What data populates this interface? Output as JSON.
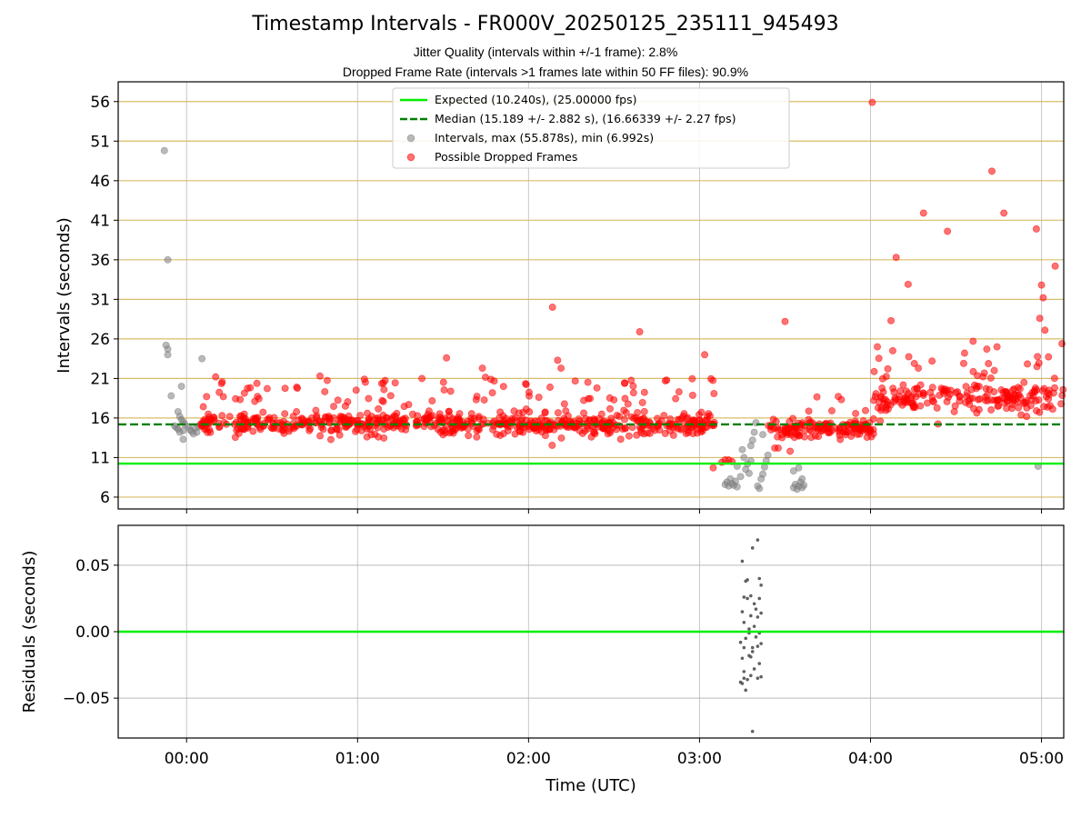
{
  "chart_data": [
    {
      "type": "scatter",
      "title": "Timestamp Intervals - FR000V_20250125_235111_945493",
      "subtitle_lines": [
        "Jitter Quality (intervals within +/-1 frame): 2.8%",
        "Dropped Frame Rate (intervals >1 frames late within 50 FF files): 90.9%"
      ],
      "ylabel": "Intervals (seconds)",
      "xlabel": "",
      "xlim": [
        -0.4,
        5.13
      ],
      "ylim": [
        4.5,
        58.5
      ],
      "x_unit": "hours from 00:00 UTC",
      "yticks": [
        6,
        11,
        16,
        21,
        26,
        31,
        36,
        41,
        46,
        51,
        56
      ],
      "xticks": [
        0,
        1,
        2,
        3,
        4,
        5
      ],
      "xtick_labels": [
        "00:00",
        "01:00",
        "02:00",
        "03:00",
        "04:00",
        "05:00"
      ],
      "grid": true,
      "legend_position": "top-center",
      "reference_lines": [
        {
          "name": "Expected (10.240s), (25.00000 fps)",
          "y": 10.24,
          "color": "#00ee00",
          "style": "solid"
        },
        {
          "name": "Median (15.189 +/- 2.882 s), (16.66339 +/- 2.27 fps)",
          "y": 15.189,
          "color": "#008000",
          "style": "dashed"
        }
      ],
      "series": [
        {
          "name": "Intervals, max (55.878s), min (6.992s)",
          "color": "#808080",
          "points": [
            [
              -0.13,
              49.8
            ],
            [
              -0.11,
              36.0
            ],
            [
              -0.12,
              25.2
            ],
            [
              -0.11,
              24.7
            ],
            [
              -0.11,
              24.0
            ],
            [
              -0.09,
              18.8
            ],
            [
              0.09,
              23.5
            ],
            [
              -0.03,
              20.0
            ],
            [
              -0.05,
              16.8
            ],
            [
              -0.04,
              16.2
            ],
            [
              -0.03,
              15.8
            ],
            [
              -0.02,
              15.5
            ],
            [
              -0.07,
              15.0
            ],
            [
              -0.06,
              14.8
            ],
            [
              -0.05,
              14.6
            ],
            [
              -0.04,
              14.2
            ],
            [
              -0.02,
              14.4
            ],
            [
              -0.01,
              15.2
            ],
            [
              0.01,
              14.9
            ],
            [
              0.02,
              14.5
            ],
            [
              0.03,
              14.3
            ],
            [
              0.05,
              14.7
            ],
            [
              0.06,
              14.2
            ],
            [
              0.07,
              14.9
            ],
            [
              0.08,
              15.2
            ],
            [
              -0.02,
              13.3
            ],
            [
              0.04,
              14.0
            ],
            [
              3.15,
              7.6
            ],
            [
              3.16,
              7.9
            ],
            [
              3.17,
              7.4
            ],
            [
              3.18,
              8.3
            ],
            [
              3.19,
              7.7
            ],
            [
              3.2,
              7.5
            ],
            [
              3.21,
              8.0
            ],
            [
              3.22,
              7.3
            ],
            [
              3.24,
              8.6
            ],
            [
              3.25,
              12.0
            ],
            [
              3.26,
              11.0
            ],
            [
              3.27,
              9.5
            ],
            [
              3.28,
              10.2
            ],
            [
              3.29,
              9.0
            ],
            [
              3.3,
              10.6
            ],
            [
              3.31,
              13.2
            ],
            [
              3.32,
              14.2
            ],
            [
              3.33,
              15.4
            ],
            [
              3.34,
              7.4
            ],
            [
              3.35,
              7.1
            ],
            [
              3.36,
              8.3
            ],
            [
              3.37,
              8.9
            ],
            [
              3.38,
              9.8
            ],
            [
              3.39,
              10.6
            ],
            [
              3.4,
              11.3
            ],
            [
              3.22,
              9.9
            ],
            [
              3.3,
              12.5
            ],
            [
              3.37,
              13.9
            ],
            [
              3.55,
              7.2
            ],
            [
              3.56,
              7.6
            ],
            [
              3.57,
              7.0
            ],
            [
              3.58,
              7.4
            ],
            [
              3.59,
              7.9
            ],
            [
              3.6,
              7.2
            ],
            [
              3.61,
              7.5
            ],
            [
              3.55,
              9.3
            ],
            [
              3.58,
              9.7
            ],
            [
              3.6,
              8.3
            ],
            [
              4.98,
              9.9
            ]
          ]
        },
        {
          "name": "Possible Dropped Frames",
          "color": "#ff0000",
          "points": [
            [
              2.14,
              30.0
            ],
            [
              2.17,
              23.3
            ],
            [
              2.19,
              22.3
            ],
            [
              2.65,
              26.9
            ],
            [
              3.03,
              24.0
            ],
            [
              3.5,
              28.2
            ],
            [
              3.53,
              11.8
            ],
            [
              4.01,
              55.9
            ],
            [
              4.04,
              25.0
            ],
            [
              4.12,
              28.3
            ],
            [
              4.15,
              36.3
            ],
            [
              4.22,
              32.9
            ],
            [
              4.31,
              41.9
            ],
            [
              4.45,
              39.6
            ],
            [
              4.55,
              24.2
            ],
            [
              4.6,
              25.7
            ],
            [
              4.71,
              47.2
            ],
            [
              4.78,
              41.9
            ],
            [
              4.97,
              39.9
            ],
            [
              5.0,
              32.8
            ],
            [
              5.01,
              31.2
            ],
            [
              5.02,
              27.1
            ],
            [
              4.99,
              28.6
            ],
            [
              5.08,
              35.2
            ],
            [
              5.12,
              25.4
            ],
            [
              4.13,
              24.5
            ],
            [
              4.28,
              22.3
            ],
            [
              4.36,
              23.2
            ],
            [
              4.68,
              24.7
            ],
            [
              4.74,
              25.0
            ],
            [
              0.17,
              21.2
            ],
            [
              0.78,
              21.3
            ],
            [
              1.04,
              20.9
            ],
            [
              1.52,
              23.6
            ],
            [
              1.73,
              22.3
            ],
            [
              2.4,
              19.8
            ],
            [
              2.8,
              20.7
            ],
            [
              3.08,
              9.7
            ],
            [
              3.13,
              10.4
            ],
            [
              3.15,
              10.7
            ],
            [
              3.17,
              10.7
            ],
            [
              3.19,
              10.5
            ],
            [
              3.44,
              12.2
            ],
            [
              3.46,
              12.2
            ]
          ],
          "clusters": [
            {
              "x_range": [
                0.08,
                3.1
              ],
              "count": 720,
              "y_center": 15.2,
              "y_spread": 1.1,
              "y_tail": 6.0,
              "tail_share": 0.14
            },
            {
              "x_range": [
                3.4,
                4.02
              ],
              "count": 150,
              "y_center": 14.6,
              "y_spread": 0.9,
              "y_tail": 4.5,
              "tail_share": 0.1
            },
            {
              "x_range": [
                4.02,
                5.13
              ],
              "count": 210,
              "y_center": 18.4,
              "y_spread": 1.4,
              "y_tail": 5.5,
              "tail_share": 0.16
            }
          ]
        }
      ],
      "legend": [
        {
          "label": "Expected (10.240s), (25.00000 fps)",
          "kind": "line",
          "color": "#00ee00"
        },
        {
          "label": "Median (15.189 +/- 2.882 s), (16.66339 +/- 2.27 fps)",
          "kind": "dashed",
          "color": "#008000"
        },
        {
          "label": "Intervals, max (55.878s), min (6.992s)",
          "kind": "marker",
          "color": "#808080"
        },
        {
          "label": "Possible Dropped Frames",
          "kind": "marker",
          "color": "#ff0000"
        }
      ]
    },
    {
      "type": "scatter",
      "title": "",
      "ylabel": "Residuals (seconds)",
      "xlabel": "Time (UTC)",
      "xlim": [
        -0.4,
        5.13
      ],
      "ylim": [
        -0.08,
        0.08
      ],
      "yticks": [
        -0.05,
        0.0,
        0.05
      ],
      "ytick_labels": [
        "−0.05",
        "0.00",
        "0.05"
      ],
      "xticks": [
        0,
        1,
        2,
        3,
        4,
        5
      ],
      "xtick_labels": [
        "00:00",
        "01:00",
        "02:00",
        "03:00",
        "04:00",
        "05:00"
      ],
      "grid": true,
      "reference_lines": [
        {
          "name": "zero",
          "y": 0.0,
          "color": "#00ee00",
          "style": "solid"
        }
      ],
      "series": [
        {
          "name": "",
          "color": "#555555",
          "points": [
            [
              3.25,
              0.053
            ],
            [
              3.27,
              0.038
            ],
            [
              3.28,
              0.039
            ],
            [
              3.26,
              0.026
            ],
            [
              3.25,
              0.015
            ],
            [
              3.26,
              0.007
            ],
            [
              3.24,
              -0.008
            ],
            [
              3.26,
              -0.012
            ],
            [
              3.27,
              -0.005
            ],
            [
              3.25,
              -0.02
            ],
            [
              3.26,
              -0.03
            ],
            [
              3.24,
              -0.038
            ],
            [
              3.25,
              -0.039
            ],
            [
              3.27,
              -0.044
            ],
            [
              3.28,
              -0.036
            ],
            [
              3.26,
              -0.035
            ],
            [
              3.28,
              0.025
            ],
            [
              3.29,
              0.002
            ],
            [
              3.29,
              -0.018
            ],
            [
              3.3,
              -0.019
            ],
            [
              3.31,
              0.063
            ],
            [
              3.3,
              0.027
            ],
            [
              3.32,
              0.004
            ],
            [
              3.31,
              -0.015
            ],
            [
              3.3,
              -0.033
            ],
            [
              3.31,
              -0.075
            ],
            [
              3.31,
              -0.012
            ],
            [
              3.32,
              0.021
            ],
            [
              3.29,
              -0.001
            ],
            [
              3.34,
              0.069
            ],
            [
              3.35,
              0.04
            ],
            [
              3.36,
              0.035
            ],
            [
              3.35,
              0.025
            ],
            [
              3.34,
              0.011
            ],
            [
              3.35,
              -0.001
            ],
            [
              3.34,
              -0.011
            ],
            [
              3.36,
              -0.009
            ],
            [
              3.35,
              -0.024
            ],
            [
              3.34,
              -0.035
            ],
            [
              3.36,
              -0.034
            ],
            [
              3.33,
              0.017
            ],
            [
              3.33,
              -0.004
            ],
            [
              3.32,
              -0.028
            ],
            [
              3.36,
              0.014
            ],
            [
              3.3,
              0.012
            ]
          ]
        }
      ]
    }
  ]
}
